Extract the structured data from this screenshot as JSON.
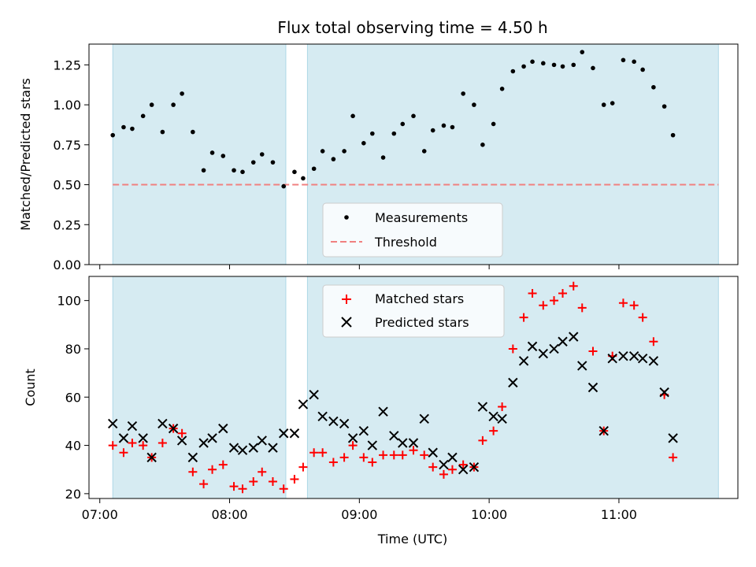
{
  "chart_data": {
    "type": "scatter",
    "title": "Flux total observing time = 4.50 h",
    "xlabel": "Time (UTC)",
    "x_domain": [
      "06:55",
      "11:55"
    ],
    "x_ticks": [
      "07:00",
      "08:00",
      "09:00",
      "10:00",
      "11:00"
    ],
    "shaded_intervals": [
      [
        "07:06",
        "08:26"
      ],
      [
        "08:36",
        "11:46"
      ]
    ],
    "colors": {
      "shade": "#add8e6",
      "measurement": "#000000",
      "threshold": "#f08080",
      "matched": "#ff0000",
      "predicted": "#000000"
    },
    "top": {
      "ylabel": "Matched/Predicted stars",
      "ylim": [
        0,
        1.38
      ],
      "yticks": [
        "0.00",
        "0.25",
        "0.50",
        "0.75",
        "1.00",
        "1.25"
      ],
      "threshold": 0.5,
      "legend": {
        "placement": "lower center",
        "measurements": "Measurements",
        "threshold": "Threshold"
      },
      "measurements": [
        [
          "07:06",
          0.81
        ],
        [
          "07:11",
          0.86
        ],
        [
          "07:15",
          0.85
        ],
        [
          "07:20",
          0.93
        ],
        [
          "07:24",
          1.0
        ],
        [
          "07:29",
          0.83
        ],
        [
          "07:34",
          1.0
        ],
        [
          "07:38",
          1.07
        ],
        [
          "07:43",
          0.83
        ],
        [
          "07:48",
          0.59
        ],
        [
          "07:52",
          0.7
        ],
        [
          "07:57",
          0.68
        ],
        [
          "08:02",
          0.59
        ],
        [
          "08:06",
          0.58
        ],
        [
          "08:11",
          0.64
        ],
        [
          "08:15",
          0.69
        ],
        [
          "08:20",
          0.64
        ],
        [
          "08:25",
          0.49
        ],
        [
          "08:30",
          0.58
        ],
        [
          "08:34",
          0.54
        ],
        [
          "08:39",
          0.6
        ],
        [
          "08:43",
          0.71
        ],
        [
          "08:48",
          0.66
        ],
        [
          "08:53",
          0.71
        ],
        [
          "08:57",
          0.93
        ],
        [
          "09:02",
          0.76
        ],
        [
          "09:06",
          0.82
        ],
        [
          "09:11",
          0.67
        ],
        [
          "09:16",
          0.82
        ],
        [
          "09:20",
          0.88
        ],
        [
          "09:25",
          0.93
        ],
        [
          "09:30",
          0.71
        ],
        [
          "09:34",
          0.84
        ],
        [
          "09:39",
          0.87
        ],
        [
          "09:43",
          0.86
        ],
        [
          "09:48",
          1.07
        ],
        [
          "09:53",
          1.0
        ],
        [
          "09:57",
          0.75
        ],
        [
          "10:02",
          0.88
        ],
        [
          "10:06",
          1.1
        ],
        [
          "10:11",
          1.21
        ],
        [
          "10:16",
          1.24
        ],
        [
          "10:20",
          1.27
        ],
        [
          "10:25",
          1.26
        ],
        [
          "10:30",
          1.25
        ],
        [
          "10:34",
          1.24
        ],
        [
          "10:39",
          1.25
        ],
        [
          "10:43",
          1.33
        ],
        [
          "10:48",
          1.23
        ],
        [
          "10:53",
          1.0
        ],
        [
          "10:57",
          1.01
        ],
        [
          "11:02",
          1.28
        ],
        [
          "11:07",
          1.27
        ],
        [
          "11:11",
          1.22
        ],
        [
          "11:16",
          1.11
        ],
        [
          "11:21",
          0.99
        ],
        [
          "11:25",
          0.81
        ]
      ]
    },
    "bottom": {
      "ylabel": "Count",
      "ylim": [
        18,
        110
      ],
      "yticks": [
        "20",
        "40",
        "60",
        "80",
        "100"
      ],
      "legend": {
        "placement": "upper center",
        "matched": "Matched stars",
        "predicted": "Predicted stars"
      },
      "matched": [
        [
          "07:06",
          40
        ],
        [
          "07:11",
          37
        ],
        [
          "07:15",
          41
        ],
        [
          "07:20",
          40
        ],
        [
          "07:24",
          35
        ],
        [
          "07:29",
          41
        ],
        [
          "07:34",
          47
        ],
        [
          "07:38",
          45
        ],
        [
          "07:43",
          29
        ],
        [
          "07:48",
          24
        ],
        [
          "07:52",
          30
        ],
        [
          "07:57",
          32
        ],
        [
          "08:02",
          23
        ],
        [
          "08:06",
          22
        ],
        [
          "08:11",
          25
        ],
        [
          "08:15",
          29
        ],
        [
          "08:20",
          25
        ],
        [
          "08:25",
          22
        ],
        [
          "08:30",
          26
        ],
        [
          "08:34",
          31
        ],
        [
          "08:39",
          37
        ],
        [
          "08:43",
          37
        ],
        [
          "08:48",
          33
        ],
        [
          "08:53",
          35
        ],
        [
          "08:57",
          40
        ],
        [
          "09:02",
          35
        ],
        [
          "09:06",
          33
        ],
        [
          "09:11",
          36
        ],
        [
          "09:16",
          36
        ],
        [
          "09:20",
          36
        ],
        [
          "09:25",
          38
        ],
        [
          "09:30",
          36
        ],
        [
          "09:34",
          31
        ],
        [
          "09:39",
          28
        ],
        [
          "09:43",
          30
        ],
        [
          "09:48",
          32
        ],
        [
          "09:53",
          31
        ],
        [
          "09:57",
          42
        ],
        [
          "10:02",
          46
        ],
        [
          "10:06",
          56
        ],
        [
          "10:11",
          80
        ],
        [
          "10:16",
          93
        ],
        [
          "10:20",
          103
        ],
        [
          "10:25",
          98
        ],
        [
          "10:30",
          100
        ],
        [
          "10:34",
          103
        ],
        [
          "10:39",
          106
        ],
        [
          "10:43",
          97
        ],
        [
          "10:48",
          79
        ],
        [
          "10:53",
          46
        ],
        [
          "10:57",
          77
        ],
        [
          "11:02",
          99
        ],
        [
          "11:07",
          98
        ],
        [
          "11:11",
          93
        ],
        [
          "11:16",
          83
        ],
        [
          "11:21",
          61
        ],
        [
          "11:25",
          35
        ]
      ],
      "predicted": [
        [
          "07:06",
          49
        ],
        [
          "07:11",
          43
        ],
        [
          "07:15",
          48
        ],
        [
          "07:20",
          43
        ],
        [
          "07:24",
          35
        ],
        [
          "07:29",
          49
        ],
        [
          "07:34",
          47
        ],
        [
          "07:38",
          42
        ],
        [
          "07:43",
          35
        ],
        [
          "07:48",
          41
        ],
        [
          "07:52",
          43
        ],
        [
          "07:57",
          47
        ],
        [
          "08:02",
          39
        ],
        [
          "08:06",
          38
        ],
        [
          "08:11",
          39
        ],
        [
          "08:15",
          42
        ],
        [
          "08:20",
          39
        ],
        [
          "08:25",
          45
        ],
        [
          "08:30",
          45
        ],
        [
          "08:34",
          57
        ],
        [
          "08:39",
          61
        ],
        [
          "08:43",
          52
        ],
        [
          "08:48",
          50
        ],
        [
          "08:53",
          49
        ],
        [
          "08:57",
          43
        ],
        [
          "09:02",
          46
        ],
        [
          "09:06",
          40
        ],
        [
          "09:11",
          54
        ],
        [
          "09:16",
          44
        ],
        [
          "09:20",
          41
        ],
        [
          "09:25",
          41
        ],
        [
          "09:30",
          51
        ],
        [
          "09:34",
          37
        ],
        [
          "09:39",
          32
        ],
        [
          "09:43",
          35
        ],
        [
          "09:48",
          30
        ],
        [
          "09:53",
          31
        ],
        [
          "09:57",
          56
        ],
        [
          "10:02",
          52
        ],
        [
          "10:06",
          51
        ],
        [
          "10:11",
          66
        ],
        [
          "10:16",
          75
        ],
        [
          "10:20",
          81
        ],
        [
          "10:25",
          78
        ],
        [
          "10:30",
          80
        ],
        [
          "10:34",
          83
        ],
        [
          "10:39",
          85
        ],
        [
          "10:43",
          73
        ],
        [
          "10:48",
          64
        ],
        [
          "10:53",
          46
        ],
        [
          "10:57",
          76
        ],
        [
          "11:02",
          77
        ],
        [
          "11:07",
          77
        ],
        [
          "11:11",
          76
        ],
        [
          "11:16",
          75
        ],
        [
          "11:21",
          62
        ],
        [
          "11:25",
          43
        ]
      ]
    }
  }
}
